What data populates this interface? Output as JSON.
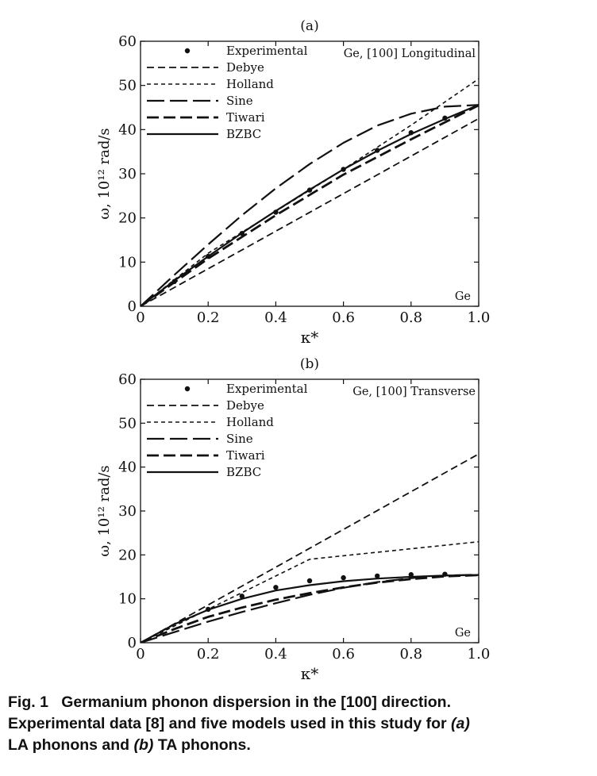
{
  "chart_data": [
    {
      "type": "line",
      "panel_label": "(a)",
      "annotation": "Ge, [100] Longitudinal",
      "corner_label": "Ge",
      "xlabel": "κ*",
      "ylabel": "ω, 10¹² rad/s",
      "xlim": [
        0,
        1.0
      ],
      "ylim": [
        0,
        60
      ],
      "x_ticks": [
        "0",
        "0.2",
        "0.4",
        "0.6",
        "0.8",
        "1.0"
      ],
      "y_ticks": [
        "0",
        "10",
        "20",
        "30",
        "40",
        "50",
        "60"
      ],
      "grid": false,
      "legend_position": "top-left",
      "series": [
        {
          "name": "Experimental",
          "style": "markers",
          "x": [
            0.1,
            0.2,
            0.3,
            0.4,
            0.5,
            0.6,
            0.7,
            0.8,
            0.9
          ],
          "y": [
            5.6,
            11.3,
            16.5,
            21.3,
            26.3,
            31.0,
            35.3,
            39.3,
            42.6
          ]
        },
        {
          "name": "Debye",
          "style": "dash-medium",
          "x": [
            0,
            1.0
          ],
          "y": [
            0,
            42.5
          ]
        },
        {
          "name": "Holland",
          "style": "dash-short",
          "x": [
            0,
            0.2,
            0.4,
            0.6,
            0.8,
            1.0
          ],
          "y": [
            0,
            12.0,
            21.5,
            31.0,
            41.0,
            51.5
          ]
        },
        {
          "name": "Sine",
          "style": "dash-long",
          "x": [
            0,
            0.1,
            0.2,
            0.3,
            0.4,
            0.5,
            0.6,
            0.7,
            0.8,
            0.9,
            1.0
          ],
          "y": [
            0,
            7.1,
            14.0,
            20.6,
            26.7,
            32.2,
            37.0,
            40.9,
            43.6,
            45.2,
            45.6
          ]
        },
        {
          "name": "Tiwari",
          "style": "dash-long-thick",
          "x": [
            0,
            0.2,
            0.4,
            0.6,
            0.8,
            1.0
          ],
          "y": [
            0,
            10.8,
            20.6,
            29.8,
            37.8,
            45.5
          ]
        },
        {
          "name": "BZBC",
          "style": "solid",
          "x": [
            0,
            0.1,
            0.2,
            0.3,
            0.4,
            0.5,
            0.6,
            0.7,
            0.8,
            0.9,
            1.0
          ],
          "y": [
            0,
            5.8,
            11.3,
            16.6,
            21.6,
            26.4,
            31.0,
            35.2,
            39.0,
            42.4,
            45.6
          ]
        }
      ]
    },
    {
      "type": "line",
      "panel_label": "(b)",
      "annotation": "Ge, [100] Transverse",
      "corner_label": "Ge",
      "xlabel": "κ*",
      "ylabel": "ω, 10¹² rad/s",
      "xlim": [
        0,
        1.0
      ],
      "ylim": [
        0,
        60
      ],
      "x_ticks": [
        "0",
        "0.2",
        "0.4",
        "0.6",
        "0.8",
        "1.0"
      ],
      "y_ticks": [
        "0",
        "10",
        "20",
        "30",
        "40",
        "50",
        "60"
      ],
      "grid": false,
      "legend_position": "top-left",
      "series": [
        {
          "name": "Experimental",
          "style": "markers",
          "x": [
            0.2,
            0.3,
            0.4,
            0.5,
            0.6,
            0.7,
            0.8,
            0.9
          ],
          "y": [
            7.6,
            10.6,
            12.6,
            14.1,
            14.8,
            15.2,
            15.5,
            15.6
          ]
        },
        {
          "name": "Debye",
          "style": "dash-medium",
          "x": [
            0,
            1.0
          ],
          "y": [
            0,
            43.0
          ]
        },
        {
          "name": "Holland",
          "style": "dash-short",
          "x": [
            0,
            0.1,
            0.2,
            0.3,
            0.4,
            0.5,
            0.6,
            0.7,
            0.8,
            0.9,
            1.0
          ],
          "y": [
            0,
            3.8,
            7.6,
            11.4,
            15.2,
            19.0,
            19.8,
            20.6,
            21.4,
            22.2,
            23.0
          ]
        },
        {
          "name": "Sine",
          "style": "dash-long",
          "x": [
            0,
            0.1,
            0.2,
            0.3,
            0.4,
            0.5,
            0.6,
            0.7,
            0.8,
            0.9,
            1.0
          ],
          "y": [
            0,
            2.4,
            4.8,
            7.0,
            9.0,
            10.9,
            12.5,
            13.8,
            14.7,
            15.3,
            15.5
          ]
        },
        {
          "name": "Tiwari",
          "style": "dash-long-thick",
          "x": [
            0,
            0.1,
            0.2,
            0.3,
            0.4,
            0.5,
            0.6,
            0.7,
            0.8,
            0.9,
            1.0
          ],
          "y": [
            0,
            3.1,
            5.9,
            8.0,
            9.8,
            11.3,
            12.6,
            13.7,
            14.5,
            15.1,
            15.4
          ]
        },
        {
          "name": "BZBC",
          "style": "solid",
          "x": [
            0,
            0.1,
            0.2,
            0.3,
            0.4,
            0.5,
            0.6,
            0.7,
            0.8,
            0.9,
            1.0
          ],
          "y": [
            0,
            4.2,
            7.5,
            10.0,
            11.9,
            13.1,
            14.0,
            14.6,
            15.0,
            15.3,
            15.4
          ]
        }
      ]
    }
  ],
  "caption": {
    "label": "Fig. 1",
    "line1": "Germanium phonon dispersion in the [100] direction.",
    "line2": "Experimental data [8] and five models used in this study for",
    "part_a": "(a)",
    "line3": "LA phonons and",
    "part_b": "(b)",
    "line3_end": "TA phonons."
  },
  "colors": {
    "ink": "#111111",
    "background": "#ffffff"
  }
}
